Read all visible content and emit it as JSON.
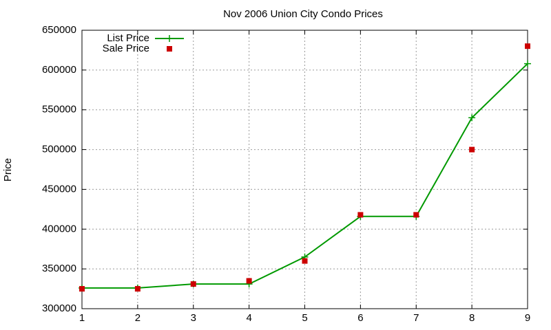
{
  "chart_data": {
    "type": "line",
    "title": "Nov 2006 Union City Condo Prices",
    "ylabel": "Price",
    "x": [
      1,
      2,
      3,
      4,
      5,
      6,
      7,
      8,
      9
    ],
    "series": [
      {
        "name": "List Price",
        "color": "#009900",
        "mode": "lines+markers",
        "marker": "plus",
        "values": [
          326000,
          326000,
          331000,
          331000,
          365000,
          416000,
          416000,
          540000,
          608000
        ]
      },
      {
        "name": "Sale Price",
        "color": "#cc0000",
        "mode": "markers",
        "marker": "square",
        "values": [
          325000,
          325000,
          331000,
          335000,
          360000,
          418000,
          418000,
          500000,
          630000
        ]
      }
    ],
    "xlim": [
      1,
      9
    ],
    "xticks": [
      1,
      2,
      3,
      4,
      5,
      6,
      7,
      8,
      9
    ],
    "ylim": [
      300000,
      650000
    ],
    "yticks": [
      300000,
      350000,
      400000,
      450000,
      500000,
      550000,
      600000,
      650000
    ],
    "grid": true,
    "legend": "top-left"
  }
}
